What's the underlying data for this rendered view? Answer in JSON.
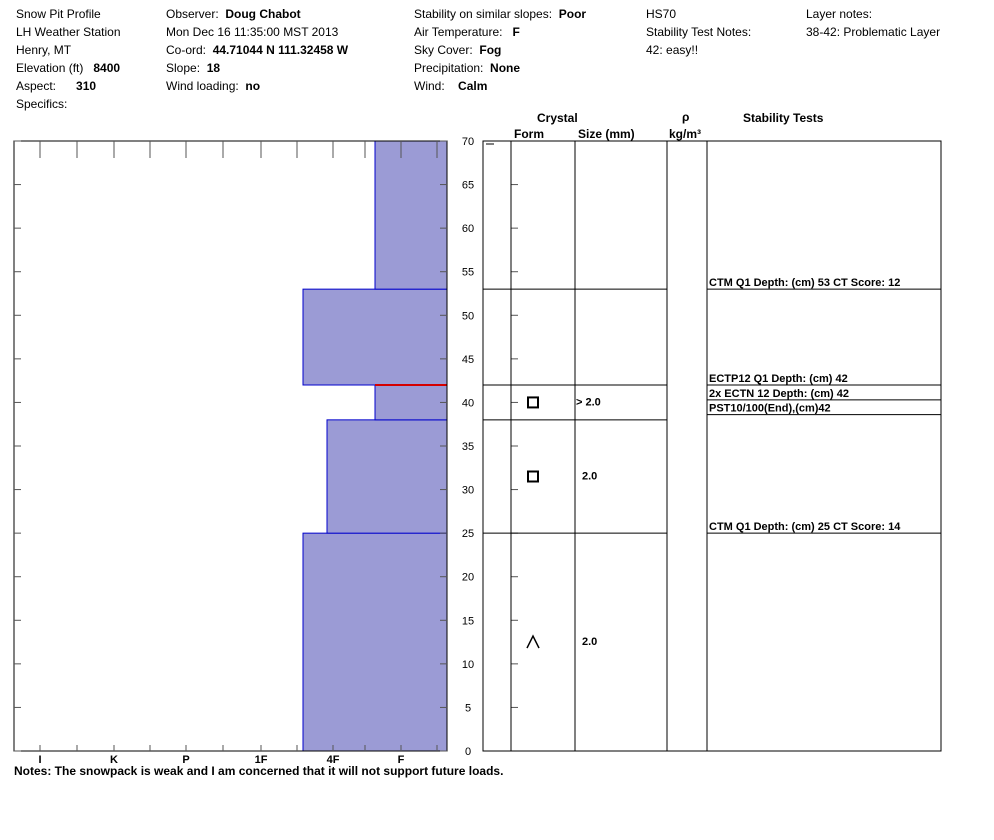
{
  "header": {
    "title": "Snow Pit Profile",
    "station": "LH Weather Station",
    "location": "Henry, MT",
    "elevation_label": "Elevation (ft)",
    "elevation": "8400",
    "aspect_label": "Aspect:",
    "aspect": "310",
    "specifics_label": "Specifics:",
    "observer_label": "Observer:",
    "observer": "Doug Chabot",
    "datetime": "Mon Dec 16 11:35:00 MST 2013",
    "coord_label": "Co-ord:",
    "coord": "44.71044 N 111.32458 W",
    "slope_label": "Slope:",
    "slope": "18",
    "wind_loading_label": "Wind loading:",
    "wind_loading": "no",
    "stability_label": "Stability on similar slopes:",
    "stability": "Poor",
    "air_temp_label": "Air Temperature:",
    "air_temp": "F",
    "sky_label": "Sky Cover:",
    "sky": "Fog",
    "precip_label": "Precipitation:",
    "precip": "None",
    "wind_label": "Wind:",
    "wind": "Calm",
    "hs": "HS70",
    "stability_notes_label": "Stability Test Notes:",
    "stability_notes": "42: easy!!",
    "layer_notes_label": "Layer notes:",
    "layer_notes": "38-42: Problematic Layer"
  },
  "notes": "Notes:  The snowpack is weak and I am concerned that it will not support future loads.",
  "columns": {
    "crystal": "Crystal",
    "form": "Form",
    "size": "Size (mm)",
    "rho": "ρ",
    "rho_unit": "kg/m³",
    "stability_tests": "Stability Tests"
  },
  "chart_data": {
    "type": "bar",
    "title": "Snow Pit Profile",
    "y_axis": {
      "range": [
        0,
        70
      ],
      "ticks": [
        0,
        5,
        10,
        15,
        20,
        25,
        30,
        35,
        40,
        45,
        50,
        55,
        60,
        65,
        70
      ]
    },
    "x_axis": {
      "tick_labels": [
        "I",
        "K",
        "P",
        "1F",
        "4F",
        "F"
      ]
    },
    "hardness_layers": [
      {
        "bottom": 0,
        "top": 25,
        "hardness": "4F"
      },
      {
        "bottom": 25,
        "top": 38,
        "hardness": "4F-F"
      },
      {
        "bottom": 38,
        "top": 42,
        "hardness": "F+"
      },
      {
        "bottom": 42,
        "top": 53,
        "hardness": "4F"
      },
      {
        "bottom": 53,
        "top": 70,
        "hardness": "F+"
      }
    ],
    "layer_boundaries": [
      25,
      38,
      42,
      53
    ],
    "critical_layer_depth": 42,
    "crystals": [
      {
        "depth": 40,
        "form": "square",
        "size": "> 2.0"
      },
      {
        "depth": 31.5,
        "form": "square",
        "size": "2.0"
      },
      {
        "depth": 12.5,
        "form": "caret",
        "size": "2.0"
      }
    ],
    "stability_tests": [
      {
        "depth": 53,
        "text": "CTM Q1 Depth: (cm) 53 CT Score: 12"
      },
      {
        "depth": 42,
        "text": "ECTP12 Q1 Depth: (cm) 42"
      },
      {
        "depth": 40.3,
        "text": "2x ECTN 12   Depth: (cm) 42"
      },
      {
        "depth": 38.6,
        "text": "PST10/100(End),(cm)42"
      },
      {
        "depth": 25,
        "text": "CTM Q1 Depth: (cm) 25 CT Score: 14"
      }
    ],
    "colors": {
      "fill": "#9b9bd5",
      "outline": "#0000cc",
      "critical": "#d40000"
    }
  }
}
